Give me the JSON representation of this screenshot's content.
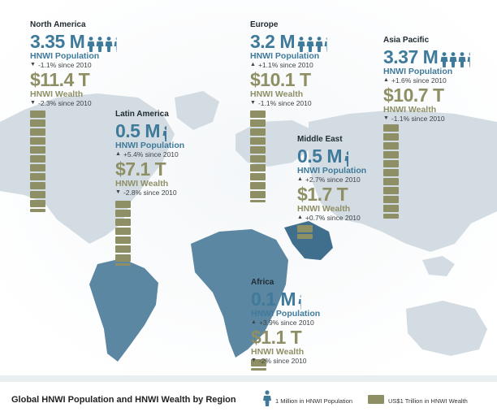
{
  "chart_data": {
    "type": "bar",
    "title": "Global HNWI Population and HNWI Wealth by Region",
    "legend": {
      "population_unit": "1 Million in HNWI Population",
      "wealth_unit": "US$1 Trillion in HNWI Wealth",
      "placement": "bottom"
    },
    "colors": {
      "population": "#3f7a9a",
      "wealth": "#8f8f66",
      "map_land": "#c9d4db",
      "map_highlight": "#5b87a2"
    },
    "regions": [
      {
        "key": "na",
        "name": "North America",
        "population": "3.35 M",
        "population_value": 3.35,
        "population_label": "HNWI Population",
        "population_change": "-1.1% since 2010",
        "population_dir": "down",
        "wealth": "$11.4 T",
        "wealth_value": 11.4,
        "wealth_label": "HNWI Wealth",
        "wealth_change": "-2.3% since 2010",
        "wealth_dir": "down"
      },
      {
        "key": "la",
        "name": "Latin America",
        "population": "0.5 M",
        "population_value": 0.5,
        "population_label": "HNWI Population",
        "population_change": "+5.4% since 2010",
        "population_dir": "up",
        "wealth": "$7.1 T",
        "wealth_value": 7.1,
        "wealth_label": "HNWI Wealth",
        "wealth_change": "-2.8% since 2010",
        "wealth_dir": "down"
      },
      {
        "key": "eu",
        "name": "Europe",
        "population": "3.2 M",
        "population_value": 3.2,
        "population_label": "HNWI Population",
        "population_change": "+1.1% since 2010",
        "population_dir": "up",
        "wealth": "$10.1 T",
        "wealth_value": 10.1,
        "wealth_label": "HNWI Wealth",
        "wealth_change": "-1.1% since 2010",
        "wealth_dir": "down"
      },
      {
        "key": "me",
        "name": "Middle East",
        "population": "0.5 M",
        "population_value": 0.5,
        "population_label": "HNWI Population",
        "population_change": "+2.7% since 2010",
        "population_dir": "up",
        "wealth": "$1.7 T",
        "wealth_value": 1.7,
        "wealth_label": "HNWI Wealth",
        "wealth_change": "+0.7% since 2010",
        "wealth_dir": "up"
      },
      {
        "key": "ap",
        "name": "Asia Pacific",
        "population": "3.37 M",
        "population_value": 3.37,
        "population_label": "HNWI Population",
        "population_change": "+1.6% since 2010",
        "population_dir": "up",
        "wealth": "$10.7 T",
        "wealth_value": 10.7,
        "wealth_label": "HNWI Wealth",
        "wealth_change": "-1.1% since 2010",
        "wealth_dir": "down"
      },
      {
        "key": "af",
        "name": "Africa",
        "population": "0.1 M",
        "population_value": 0.1,
        "population_label": "HNWI Population",
        "population_change": "+3.9% since 2010",
        "population_dir": "up",
        "wealth": "$1.1 T",
        "wealth_value": 1.1,
        "wealth_label": "HNWI Wealth",
        "wealth_change": "-2% since 2010",
        "wealth_dir": "down"
      }
    ]
  }
}
